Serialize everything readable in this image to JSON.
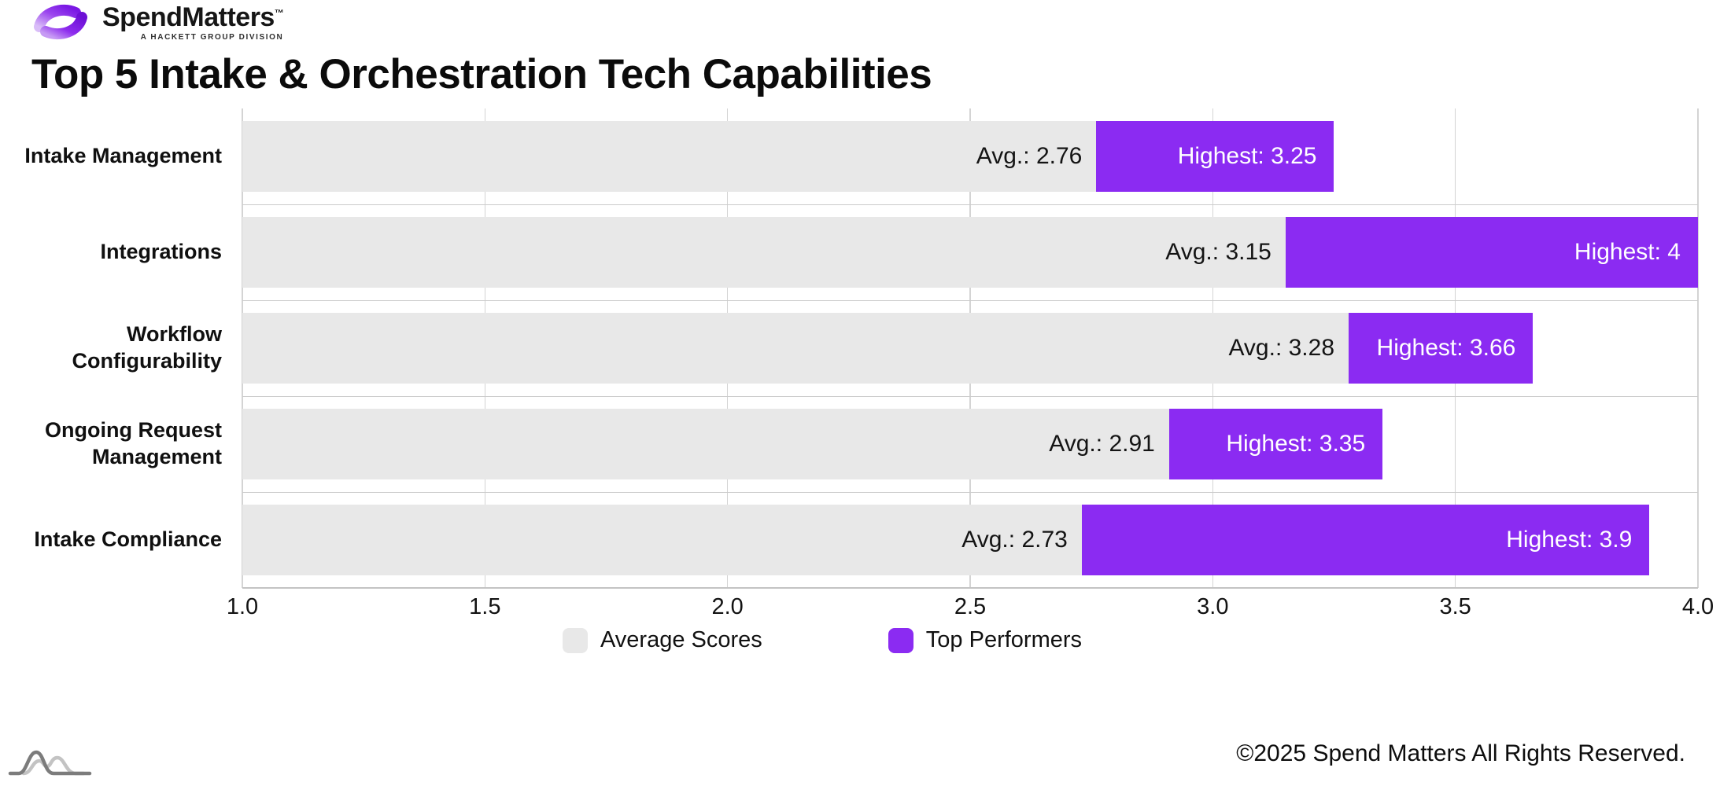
{
  "brand": {
    "logo_text_spend": "Spend",
    "logo_text_matters": "Matters",
    "logo_tm": "™",
    "logo_tagline": "A HACKETT GROUP DIVISION"
  },
  "title": "Top 5 Intake & Orchestration Tech Capabilities",
  "icons": {
    "brand_icon": "spend-matters-swoosh",
    "footer_icon": "overlapping-bell-curves"
  },
  "chart_data": {
    "type": "bar",
    "orientation": "horizontal",
    "title": "Top 5 Intake & Orchestration Tech Capabilities",
    "categories": [
      "Intake Management",
      "Integrations",
      "Workflow Configurability",
      "Ongoing Request Management",
      "Intake Compliance"
    ],
    "series": [
      {
        "name": "Average Scores",
        "values": [
          2.76,
          3.15,
          3.28,
          2.91,
          2.73
        ]
      },
      {
        "name": "Top Performers",
        "values": [
          3.25,
          4,
          3.66,
          3.35,
          3.9
        ]
      }
    ],
    "rows": [
      {
        "label": "Intake Management",
        "avg": 2.76,
        "highest": 3.25,
        "avg_label": "Avg.: 2.76",
        "highest_label": "Highest: 3.25"
      },
      {
        "label": "Integrations",
        "avg": 3.15,
        "highest": 4,
        "avg_label": "Avg.: 3.15",
        "highest_label": "Highest: 4"
      },
      {
        "label": "Workflow Configurability",
        "avg": 3.28,
        "highest": 3.66,
        "avg_label": "Avg.: 3.28",
        "highest_label": "Highest: 3.66"
      },
      {
        "label": "Ongoing Request Management",
        "avg": 2.91,
        "highest": 3.35,
        "avg_label": "Avg.: 2.91",
        "highest_label": "Highest: 3.35"
      },
      {
        "label": "Intake Compliance",
        "avg": 2.73,
        "highest": 3.9,
        "avg_label": "Avg.: 2.73",
        "highest_label": "Highest: 3.9"
      }
    ],
    "xlim": [
      1.0,
      4.0
    ],
    "x_ticks": [
      "1.0",
      "1.5",
      "2.0",
      "2.5",
      "3.0",
      "3.5",
      "4.0"
    ],
    "grid": true,
    "legend_position": "bottom",
    "legend": [
      {
        "label": "Average Scores",
        "color": "#e8e8e8"
      },
      {
        "label": "Top Performers",
        "color": "#8b2bf2"
      }
    ],
    "colors": {
      "average": "#e8e8e8",
      "top": "#8b2bf2"
    }
  },
  "footer": {
    "copyright": "©2025 Spend Matters All Rights Reserved."
  }
}
